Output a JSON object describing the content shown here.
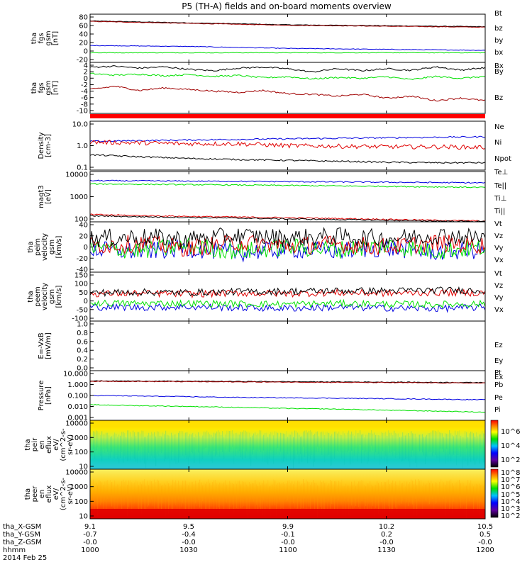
{
  "title": "P5 (TH-A) fields and on-board moments overview",
  "footer": {
    "row_labels": [
      "tha_X-GSM",
      "tha_Y-GSM",
      "tha_Z-GSM",
      "hhmm",
      "2014 Feb 25"
    ],
    "columns": [
      {
        "x": "9.1",
        "y": "-0.7",
        "z": "-0.0",
        "hhmm": "1000"
      },
      {
        "x": "9.5",
        "y": "-0.4",
        "z": "-0.0",
        "hhmm": "1030"
      },
      {
        "x": "9.9",
        "y": "-0.1",
        "z": "-0.0",
        "hhmm": "1100"
      },
      {
        "x": "10.2",
        "y": "0.2",
        "z": "-0.0",
        "hhmm": "1130"
      },
      {
        "x": "10.5",
        "y": "0.5",
        "z": "-0.0",
        "hhmm": "1200"
      }
    ]
  },
  "colorbars": [
    {
      "panel": 11,
      "labels": [
        "10^6",
        "10^4",
        "10^2"
      ]
    },
    {
      "panel": 12,
      "labels": [
        "10^8",
        "10^7",
        "10^6",
        "10^5",
        "10^4",
        "10^3",
        "10^2"
      ]
    }
  ],
  "colors": {
    "black": "#000000",
    "red": "#e00000",
    "green": "#00e000",
    "blue": "#0000e0",
    "darkred": "#a00000"
  },
  "chart_data": [
    {
      "type": "line",
      "ylabel": [
        "tha",
        "fgs",
        "gsm",
        "[nT]"
      ],
      "yticks": [
        "80",
        "60",
        "40",
        "20",
        "0",
        "-20"
      ],
      "ylim": [
        -20,
        80
      ],
      "legend": [
        {
          "name": "Bt",
          "color": "#000000"
        },
        {
          "name": "bz",
          "color": "#e00000"
        },
        {
          "name": "by",
          "color": "#00e000"
        },
        {
          "name": "bx",
          "color": "#0000e0"
        }
      ],
      "series": [
        {
          "name": "Bt",
          "color": "#000000",
          "values": [
            66,
            64,
            62,
            60,
            58,
            57,
            56,
            55,
            54
          ]
        },
        {
          "name": "bz",
          "color": "#a00000",
          "values": [
            65,
            63,
            61,
            59,
            57,
            56,
            55,
            54,
            53
          ]
        },
        {
          "name": "by",
          "color": "#0000e0",
          "values": [
            15,
            14,
            13,
            11,
            9,
            8,
            7,
            6,
            5
          ]
        },
        {
          "name": "bx",
          "color": "#00e000",
          "values": [
            0,
            0,
            0,
            0,
            0,
            0,
            0,
            0,
            0
          ]
        }
      ]
    },
    {
      "type": "line",
      "ylabel": [
        "tha",
        "fgs",
        "gsm",
        "[nT]"
      ],
      "yticks": [
        "4",
        "2",
        "0",
        "-2",
        "-4",
        "-6",
        "-8",
        "-10"
      ],
      "ylim": [
        -11,
        5
      ],
      "legend": [
        {
          "name": "Bx",
          "color": "#000000"
        },
        {
          "name": "By",
          "color": "#00e000"
        },
        {
          "name": "Bz",
          "color": "#a00000"
        }
      ],
      "series": [
        {
          "name": "Bx",
          "color": "#000000",
          "values": [
            3.5,
            3.8,
            3.2,
            3.6,
            2.8,
            2.4,
            3.2,
            3.5,
            3.0,
            2.0,
            3.0,
            2.4,
            3.0,
            2.5,
            3.6,
            2.6,
            3.3
          ]
        },
        {
          "name": "By",
          "color": "#00e000",
          "values": [
            1.5,
            1.0,
            1.3,
            0.8,
            1.2,
            0.6,
            0.9,
            0.2,
            0.5,
            -0.2,
            0.3,
            0.0,
            0.5,
            -0.4,
            0.6,
            0.0,
            0.6
          ]
        },
        {
          "name": "Bz",
          "color": "#a00000",
          "values": [
            -3.5,
            -2.5,
            -3.8,
            -3.0,
            -3.5,
            -4.0,
            -4.4,
            -3.8,
            -4.8,
            -5.0,
            -5.6,
            -5.0,
            -6.2,
            -5.6,
            -7.0,
            -6.2,
            -7.0
          ]
        }
      ]
    },
    {
      "type": "bar",
      "ylabel": [],
      "yticks": [],
      "series": [
        {
          "name": "",
          "color": "#ff0000",
          "values": [
            1
          ]
        }
      ]
    },
    {
      "type": "line",
      "yscale": "log",
      "ylabel": [
        "Density",
        "[cm-3]"
      ],
      "yticks": [
        "10.0",
        "1.0",
        "0.1"
      ],
      "ylim": [
        0.1,
        10
      ],
      "legend": [
        {
          "name": "Ne",
          "color": "#e00000"
        },
        {
          "name": "Ni",
          "color": "#000000"
        },
        {
          "name": "Npot",
          "color": "#0000e0"
        }
      ],
      "series": [
        {
          "name": "Npot",
          "color": "#0000e0",
          "values": [
            1.5,
            1.6,
            1.7,
            1.8,
            1.9,
            2.0,
            2.1,
            2.2,
            2.3
          ]
        },
        {
          "name": "Ne",
          "color": "#e00000",
          "values": [
            1.4,
            1.3,
            1.2,
            1.2,
            1.0,
            0.95,
            0.9,
            0.9,
            0.85
          ]
        },
        {
          "name": "Ni",
          "color": "#000000",
          "values": [
            0.42,
            0.35,
            0.3,
            0.27,
            0.25,
            0.23,
            0.21,
            0.2,
            0.2
          ]
        }
      ]
    },
    {
      "type": "line",
      "yscale": "log",
      "ylabel": [
        "magt3",
        "[eV]"
      ],
      "yticks": [
        "10000",
        "1000",
        "100"
      ],
      "ylim": [
        30,
        10000
      ],
      "legend": [
        {
          "name": "Te⊥",
          "color": "#e00000"
        },
        {
          "name": "Te||",
          "color": "#000000"
        },
        {
          "name": "Ti⊥",
          "color": "#0000e0"
        },
        {
          "name": "Ti||",
          "color": "#00e000"
        }
      ],
      "series": [
        {
          "name": "Ti⊥",
          "color": "#0000e0",
          "values": [
            3500,
            3400,
            3300,
            3200,
            3100,
            3000,
            2900,
            2800,
            2700
          ]
        },
        {
          "name": "Ti||",
          "color": "#00e000",
          "values": [
            2400,
            2300,
            2200,
            2100,
            2000,
            1900,
            1800,
            1700,
            1600
          ]
        },
        {
          "name": "Te⊥",
          "color": "#e00000",
          "values": [
            70,
            62,
            56,
            52,
            48,
            44,
            40,
            36,
            33
          ]
        },
        {
          "name": "Te||",
          "color": "#000000",
          "values": [
            60,
            54,
            50,
            46,
            42,
            39,
            36,
            33,
            31
          ]
        }
      ]
    },
    {
      "type": "line",
      "ylabel": [
        "tha",
        "peim",
        "velocity",
        "gsm",
        "[km/s]"
      ],
      "yticks": [
        "40",
        "20",
        "0",
        "-20",
        "-40"
      ],
      "ylim": [
        -45,
        45
      ],
      "legend": [
        {
          "name": "Vt",
          "color": "#000000"
        },
        {
          "name": "Vz",
          "color": "#e00000"
        },
        {
          "name": "Vy",
          "color": "#00e000"
        },
        {
          "name": "Vx",
          "color": "#0000e0"
        }
      ],
      "series": [
        {
          "name": "Vx",
          "color": "#0000e0",
          "values": [
            -5,
            -8,
            -3,
            -10,
            -4,
            -7,
            -2,
            -9,
            -5
          ]
        },
        {
          "name": "Vy",
          "color": "#00e000",
          "values": [
            -2,
            -6,
            2,
            -8,
            0,
            -5,
            3,
            -7,
            -1
          ]
        },
        {
          "name": "Vz",
          "color": "#e00000",
          "values": [
            3,
            6,
            -2,
            8,
            2,
            5,
            0,
            7,
            3
          ]
        },
        {
          "name": "Vt",
          "color": "#000000",
          "values": [
            15,
            18,
            14,
            20,
            16,
            19,
            15,
            21,
            17
          ]
        }
      ]
    },
    {
      "type": "line",
      "ylabel": [
        "tha",
        "peem",
        "velocity",
        "gsm",
        "[km/s]"
      ],
      "yticks": [
        "150",
        "100",
        "50",
        "0",
        "-50",
        "-100"
      ],
      "ylim": [
        -100,
        150
      ],
      "legend": [
        {
          "name": "Vt",
          "color": "#000000"
        },
        {
          "name": "Vz",
          "color": "#e00000"
        },
        {
          "name": "Vy",
          "color": "#00e000"
        },
        {
          "name": "Vx",
          "color": "#0000e0"
        }
      ],
      "series": [
        {
          "name": "Vx",
          "color": "#0000e0",
          "values": [
            -28,
            -30,
            -27,
            -32,
            -35,
            -30,
            -33,
            -36,
            -30
          ]
        },
        {
          "name": "Vy",
          "color": "#00e000",
          "values": [
            -8,
            -10,
            -9,
            -12,
            -14,
            -10,
            -13,
            -15,
            -12
          ]
        },
        {
          "name": "Vz",
          "color": "#e00000",
          "values": [
            40,
            42,
            38,
            43,
            40,
            45,
            42,
            46,
            44
          ]
        },
        {
          "name": "Vt",
          "color": "#000000",
          "values": [
            45,
            48,
            46,
            50,
            52,
            55,
            54,
            58,
            56
          ]
        }
      ]
    },
    {
      "type": "line",
      "ylabel": [
        "E=-VxB",
        "[mV/m]"
      ],
      "yticks": [
        "1.0",
        "0.8",
        "0.6",
        "0.4",
        "0.2",
        "0.0"
      ],
      "ylim": [
        0,
        1
      ],
      "legend": [
        {
          "name": "Ez",
          "color": "#e00000"
        },
        {
          "name": "Ey",
          "color": "#00e000"
        },
        {
          "name": "Ex",
          "color": "#0000e0"
        }
      ],
      "series": []
    },
    {
      "type": "line",
      "yscale": "log",
      "ylabel": [
        "Pressure",
        "[nPa]"
      ],
      "yticks": [
        "10.000",
        "1.000",
        "0.100",
        "0.010",
        "0.001"
      ],
      "ylim": [
        0.001,
        10
      ],
      "legend": [
        {
          "name": "Pt",
          "color": "#000000"
        },
        {
          "name": "Pb",
          "color": "#a00000"
        },
        {
          "name": "Pe",
          "color": "#00e000"
        },
        {
          "name": "Pi",
          "color": "#0000e0"
        }
      ],
      "series": [
        {
          "name": "Pt",
          "color": "#000000",
          "values": [
            1.5,
            1.45,
            1.4,
            1.35,
            1.3,
            1.25,
            1.2,
            1.15,
            1.1
          ]
        },
        {
          "name": "Pb",
          "color": "#a00000",
          "values": [
            1.4,
            1.35,
            1.3,
            1.25,
            1.2,
            1.15,
            1.1,
            1.05,
            1.0
          ]
        },
        {
          "name": "Pi",
          "color": "#0000e0",
          "values": [
            0.1,
            0.09,
            0.08,
            0.07,
            0.065,
            0.06,
            0.055,
            0.05,
            0.045
          ]
        },
        {
          "name": "Pe",
          "color": "#00e000",
          "values": [
            0.018,
            0.015,
            0.013,
            0.011,
            0.009,
            0.008,
            0.0065,
            0.0055,
            0.0045
          ]
        }
      ]
    },
    {
      "type": "heatmap",
      "ylabel": [
        "tha",
        "peir",
        "en",
        "eflux",
        "eV/",
        "(cm^2-s-",
        "sr-eV)"
      ],
      "yticks": [
        "10000",
        "1000",
        "100",
        "10"
      ],
      "yscale": "log",
      "ylim": [
        5,
        30000
      ]
    },
    {
      "type": "heatmap",
      "ylabel": [
        "tha",
        "peer",
        "en",
        "eflux",
        "eV/",
        "(cm^2-s-",
        "sr-eV)"
      ],
      "yticks": [
        "10000",
        "1000",
        "100",
        "10"
      ],
      "yscale": "log",
      "ylim": [
        5,
        30000
      ]
    }
  ]
}
